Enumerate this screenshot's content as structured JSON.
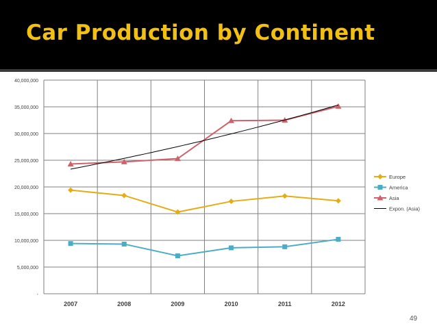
{
  "slide": {
    "title": "Car Production by Continent",
    "page_number": "49"
  },
  "chart_data": {
    "type": "line",
    "title": "Car Production by Continent",
    "xlabel": "",
    "ylabel": "",
    "categories": [
      "2007",
      "2008",
      "2009",
      "2010",
      "2011",
      "2012"
    ],
    "ylim": [
      0,
      40000000
    ],
    "yticks": [
      0,
      5000000,
      10000000,
      15000000,
      20000000,
      25000000,
      30000000,
      35000000,
      40000000
    ],
    "ytick_labels": [
      "-",
      "5,000,000",
      "10,000,000",
      "15,000,000",
      "20,000,000",
      "25,000,000",
      "30,000,000",
      "35,000,000",
      "40,000,000"
    ],
    "grid": true,
    "legend_position": "right",
    "series": [
      {
        "name": "Europe",
        "values": [
          19400000,
          18400000,
          15300000,
          17300000,
          18300000,
          17400000
        ],
        "color": "#e5ad14",
        "marker": "diamond"
      },
      {
        "name": "America",
        "values": [
          9400000,
          9300000,
          7100000,
          8600000,
          8800000,
          10200000
        ],
        "color": "#4bacc6",
        "marker": "square"
      },
      {
        "name": "Asia",
        "values": [
          24300000,
          24700000,
          25300000,
          32400000,
          32500000,
          35100000
        ],
        "color": "#d0606a",
        "marker": "triangle"
      }
    ],
    "trendline": {
      "name": "Expon. (Asia)",
      "of": "Asia",
      "type": "exponential",
      "color": "#000000"
    }
  }
}
